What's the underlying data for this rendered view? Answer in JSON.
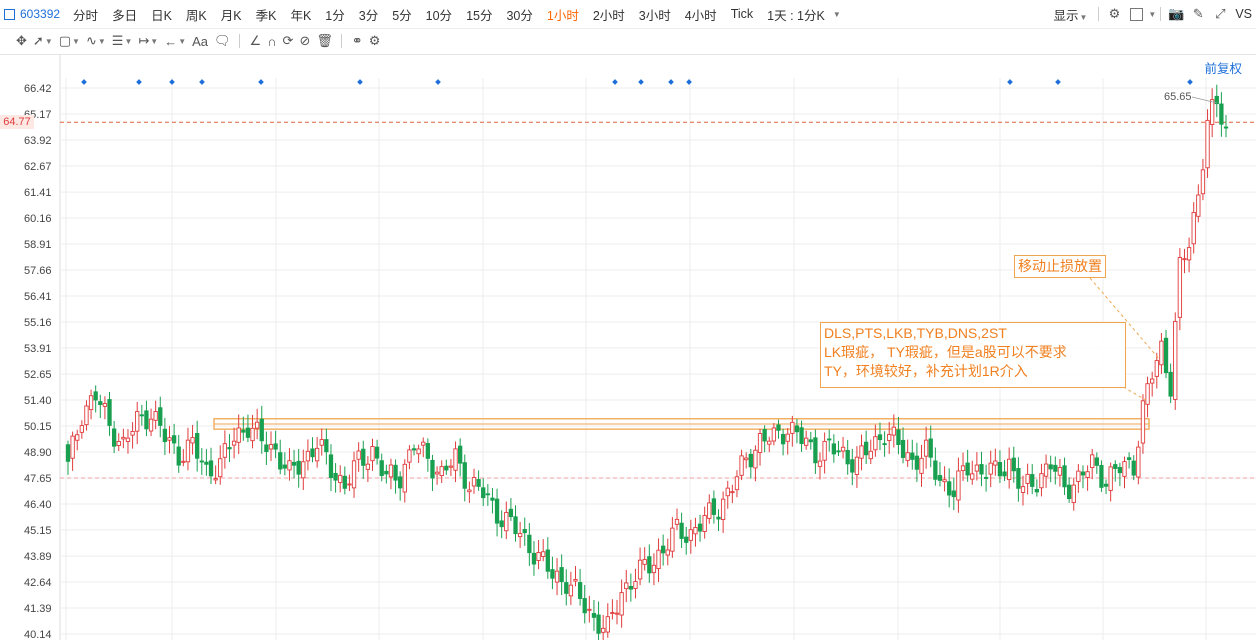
{
  "toolbar": {
    "symbol": "603392",
    "periods": [
      "分时",
      "多日",
      "日K",
      "周K",
      "月K",
      "季K",
      "年K",
      "1分",
      "3分",
      "5分",
      "10分",
      "15分",
      "30分",
      "1小时",
      "2小时",
      "3小时",
      "4小时",
      "Tick",
      "1天 : 1分K"
    ],
    "active_period": "1小时",
    "display_label": "显示",
    "vs_label": "VS",
    "text_tool_label": "Aa",
    "colors": {
      "active": "#ff6600",
      "link": "#1e6fd9"
    }
  },
  "adjust_label": "前复权",
  "notes": {
    "stop": "移动止损放置",
    "plan_lines": [
      "DLS,PTS,LKB,TYB,DNS,2ST",
      "LK瑕疵， TY瑕疵，但是a股可以不要求",
      "TY，环境较好，补充计划1R介入"
    ]
  },
  "chart_data": {
    "type": "candlestick",
    "y_ticks": [
      "66.42",
      "65.17",
      "63.92",
      "62.67",
      "61.41",
      "60.16",
      "58.91",
      "57.66",
      "56.41",
      "55.16",
      "53.91",
      "52.65",
      "51.40",
      "50.15",
      "48.90",
      "47.65",
      "46.40",
      "45.15",
      "43.89",
      "42.64",
      "41.39",
      "40.14"
    ],
    "ylim": [
      40.14,
      66.42
    ],
    "current_price": "64.77",
    "current_price_value": 64.77,
    "high_label": "65.65",
    "low_reference": 47.65,
    "resistance_zone": [
      50.0,
      50.5
    ],
    "colors": {
      "up": "#e03b3b",
      "down": "#18a050",
      "zone": "#f0a650",
      "grid": "#eeeeee"
    },
    "price_path": [
      [
        0,
        48.2
      ],
      [
        3,
        50.8
      ],
      [
        6,
        51.6
      ],
      [
        9,
        50.2
      ],
      [
        12,
        49.2
      ],
      [
        15,
        50.4
      ],
      [
        18,
        50.8
      ],
      [
        21,
        49.6
      ],
      [
        24,
        48.8
      ],
      [
        27,
        49.2
      ],
      [
        30,
        48.0
      ],
      [
        33,
        48.3
      ],
      [
        36,
        49.6
      ],
      [
        39,
        50.2
      ],
      [
        42,
        49.4
      ],
      [
        45,
        49.0
      ],
      [
        48,
        47.8
      ],
      [
        51,
        48.5
      ],
      [
        54,
        49.3
      ],
      [
        57,
        48.1
      ],
      [
        60,
        47.3
      ],
      [
        63,
        48.4
      ],
      [
        66,
        49.0
      ],
      [
        69,
        47.6
      ],
      [
        72,
        47.8
      ],
      [
        75,
        49.2
      ],
      [
        78,
        48.6
      ],
      [
        81,
        47.8
      ],
      [
        84,
        48.6
      ],
      [
        87,
        47.4
      ],
      [
        90,
        46.9
      ],
      [
        93,
        46.0
      ],
      [
        96,
        45.4
      ],
      [
        99,
        44.7
      ],
      [
        102,
        43.8
      ],
      [
        105,
        43.0
      ],
      [
        108,
        42.7
      ],
      [
        111,
        41.8
      ],
      [
        114,
        40.9
      ],
      [
        117,
        40.3
      ],
      [
        120,
        42.2
      ],
      [
        123,
        42.9
      ],
      [
        126,
        43.5
      ],
      [
        129,
        44.2
      ],
      [
        132,
        45.1
      ],
      [
        135,
        45.0
      ],
      [
        138,
        45.6
      ],
      [
        141,
        46.3
      ],
      [
        144,
        47.2
      ],
      [
        147,
        48.6
      ],
      [
        150,
        49.4
      ],
      [
        153,
        49.6
      ],
      [
        156,
        50.1
      ],
      [
        159,
        49.5
      ],
      [
        162,
        48.9
      ],
      [
        165,
        49.1
      ],
      [
        168,
        48.8
      ],
      [
        171,
        48.4
      ],
      [
        174,
        49.1
      ],
      [
        177,
        49.9
      ],
      [
        180,
        49.2
      ],
      [
        183,
        48.5
      ],
      [
        186,
        48.8
      ],
      [
        189,
        47.6
      ],
      [
        192,
        47.0
      ],
      [
        195,
        48.2
      ],
      [
        198,
        48.0
      ],
      [
        201,
        47.9
      ],
      [
        204,
        48.4
      ],
      [
        207,
        47.0
      ],
      [
        210,
        47.6
      ],
      [
        213,
        48.3
      ],
      [
        216,
        47.2
      ],
      [
        219,
        47.6
      ],
      [
        222,
        48.3
      ],
      [
        225,
        47.6
      ],
      [
        228,
        48.1
      ],
      [
        231,
        48.3
      ],
      [
        233,
        51.0
      ],
      [
        235,
        52.6
      ],
      [
        237,
        53.9
      ],
      [
        239,
        52.2
      ],
      [
        241,
        57.7
      ],
      [
        243,
        58.9
      ],
      [
        245,
        61.4
      ],
      [
        247,
        64.8
      ],
      [
        249,
        65.6
      ],
      [
        251,
        64.4
      ]
    ]
  }
}
